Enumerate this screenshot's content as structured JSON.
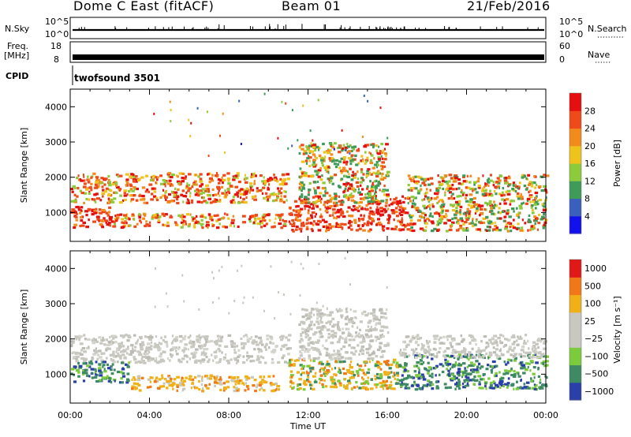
{
  "header": {
    "station": "Dome C East (fitACF)",
    "beam": "Beam 01",
    "date": "21/Feb/2016"
  },
  "strips": {
    "nsky": {
      "label": "N.Sky",
      "top_tick": "10^5",
      "bottom_tick": "10^0"
    },
    "nsearch": {
      "label": "N.Search",
      "top_tick": "10^5",
      "bottom_tick": "10^0"
    },
    "freq": {
      "label_line1": "Freq.",
      "label_line2": "[MHz]",
      "top_tick": "18",
      "bottom_tick": "8"
    },
    "nave": {
      "label": "Nave",
      "top_tick": "60",
      "bottom_tick": "0"
    },
    "cpid": {
      "label": "CPID",
      "value": "twofsound 3501"
    }
  },
  "chart_data": [
    {
      "type": "heatmap",
      "name": "power",
      "ylabel": "Slant Range [km]",
      "yticks": [
        "1000",
        "2000",
        "3000",
        "4000"
      ],
      "ylim": [
        180,
        4500
      ],
      "xlim": [
        0,
        24
      ],
      "colorbar": {
        "title": "Power [dB]",
        "tick_labels": [
          "4",
          "8",
          "12",
          "16",
          "20",
          "24",
          "28"
        ],
        "colors": [
          "#1111ee",
          "#3a5fbd",
          "#3f9b58",
          "#8ccc3c",
          "#f0c21c",
          "#f28a1c",
          "#ee4a1a",
          "#e60f0f"
        ]
      },
      "scatter_bands": [
        {
          "t0": 0.0,
          "t1": 11.0,
          "r0": 1300,
          "r1": 2150,
          "level": "mid-high"
        },
        {
          "t0": 0.0,
          "t1": 2.0,
          "r0": 600,
          "r1": 1200,
          "level": "high"
        },
        {
          "t0": 2.0,
          "t1": 11.0,
          "r0": 600,
          "r1": 1000,
          "level": "mid-high"
        },
        {
          "t0": 11.0,
          "t1": 17.0,
          "r0": 500,
          "r1": 1500,
          "level": "high"
        },
        {
          "t0": 11.5,
          "t1": 16.0,
          "r0": 1300,
          "r1": 3000,
          "level": "mid"
        },
        {
          "t0": 17.0,
          "t1": 24.0,
          "r0": 500,
          "r1": 2100,
          "level": "mid"
        }
      ]
    },
    {
      "type": "heatmap",
      "name": "velocity",
      "xlabel": "Time UT",
      "ylabel": "Slant Range [km]",
      "xticks": [
        "00:00",
        "04:00",
        "08:00",
        "12:00",
        "16:00",
        "20:00",
        "00:00"
      ],
      "yticks": [
        "1000",
        "2000",
        "3000",
        "4000"
      ],
      "ylim": [
        180,
        4500
      ],
      "xlim": [
        0,
        24
      ],
      "colorbar": {
        "title": "Velocity [m s⁻¹]",
        "tick_labels": [
          "1000",
          "500",
          "100",
          "25",
          "−25",
          "−100",
          "−500",
          "−1000"
        ],
        "colors": [
          "#2a3fa8",
          "#3e8a64",
          "#7ccb3c",
          "#c8c8c0",
          "#c8c8c0",
          "#f0b018",
          "#f07818",
          "#e01818"
        ]
      },
      "scatter_bands": [
        {
          "t0": 0.0,
          "t1": 11.0,
          "r0": 1350,
          "r1": 2150,
          "level": "gray"
        },
        {
          "t0": 0.0,
          "t1": 3.0,
          "r0": 800,
          "r1": 1400,
          "level": "green"
        },
        {
          "t0": 3.0,
          "t1": 10.5,
          "r0": 550,
          "r1": 1000,
          "level": "orange"
        },
        {
          "t0": 11.0,
          "t1": 16.5,
          "r0": 600,
          "r1": 1450,
          "level": "orange-green"
        },
        {
          "t0": 11.5,
          "t1": 16.0,
          "r0": 1450,
          "r1": 2900,
          "level": "gray"
        },
        {
          "t0": 16.5,
          "t1": 24.0,
          "r0": 600,
          "r1": 1600,
          "level": "green"
        },
        {
          "t0": 16.5,
          "t1": 24.0,
          "r0": 1500,
          "r1": 2150,
          "level": "gray"
        }
      ]
    }
  ]
}
